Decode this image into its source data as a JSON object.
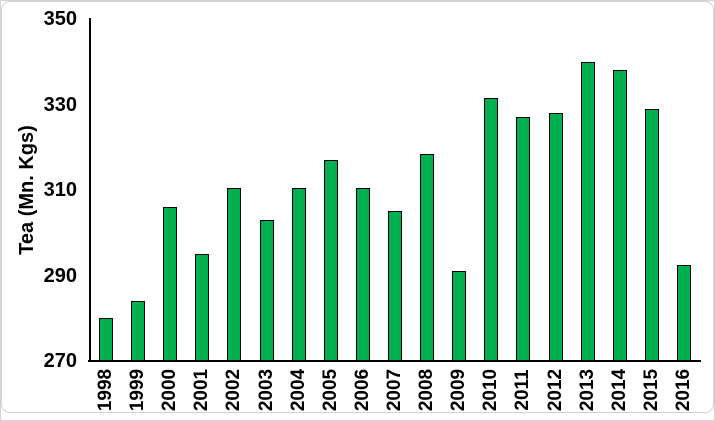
{
  "chart_data": {
    "type": "bar",
    "title": "",
    "ylabel": "Tea (Mn. Kgs)",
    "xlabel": "",
    "categories": [
      "1998",
      "1999",
      "2000",
      "2001",
      "2002",
      "2003",
      "2004",
      "2005",
      "2006",
      "2007",
      "2008",
      "2009",
      "2010",
      "2011",
      "2012",
      "2013",
      "2014",
      "2015",
      "2016"
    ],
    "values": [
      280,
      284,
      306,
      295,
      310.5,
      303,
      310.5,
      317,
      310.5,
      305,
      318.5,
      291,
      331.5,
      327,
      328,
      340,
      338,
      329,
      292.5
    ],
    "ylim": [
      270,
      350
    ],
    "yticks": [
      270,
      290,
      310,
      330,
      350
    ],
    "grid": false,
    "legend_position": "none",
    "bar_color": "#00B050",
    "bar_border_color": "#000000"
  },
  "colors": {
    "background": "#ffffff",
    "axis": "#000000",
    "text": "#000000",
    "frame_border": "#d2d2d2"
  }
}
